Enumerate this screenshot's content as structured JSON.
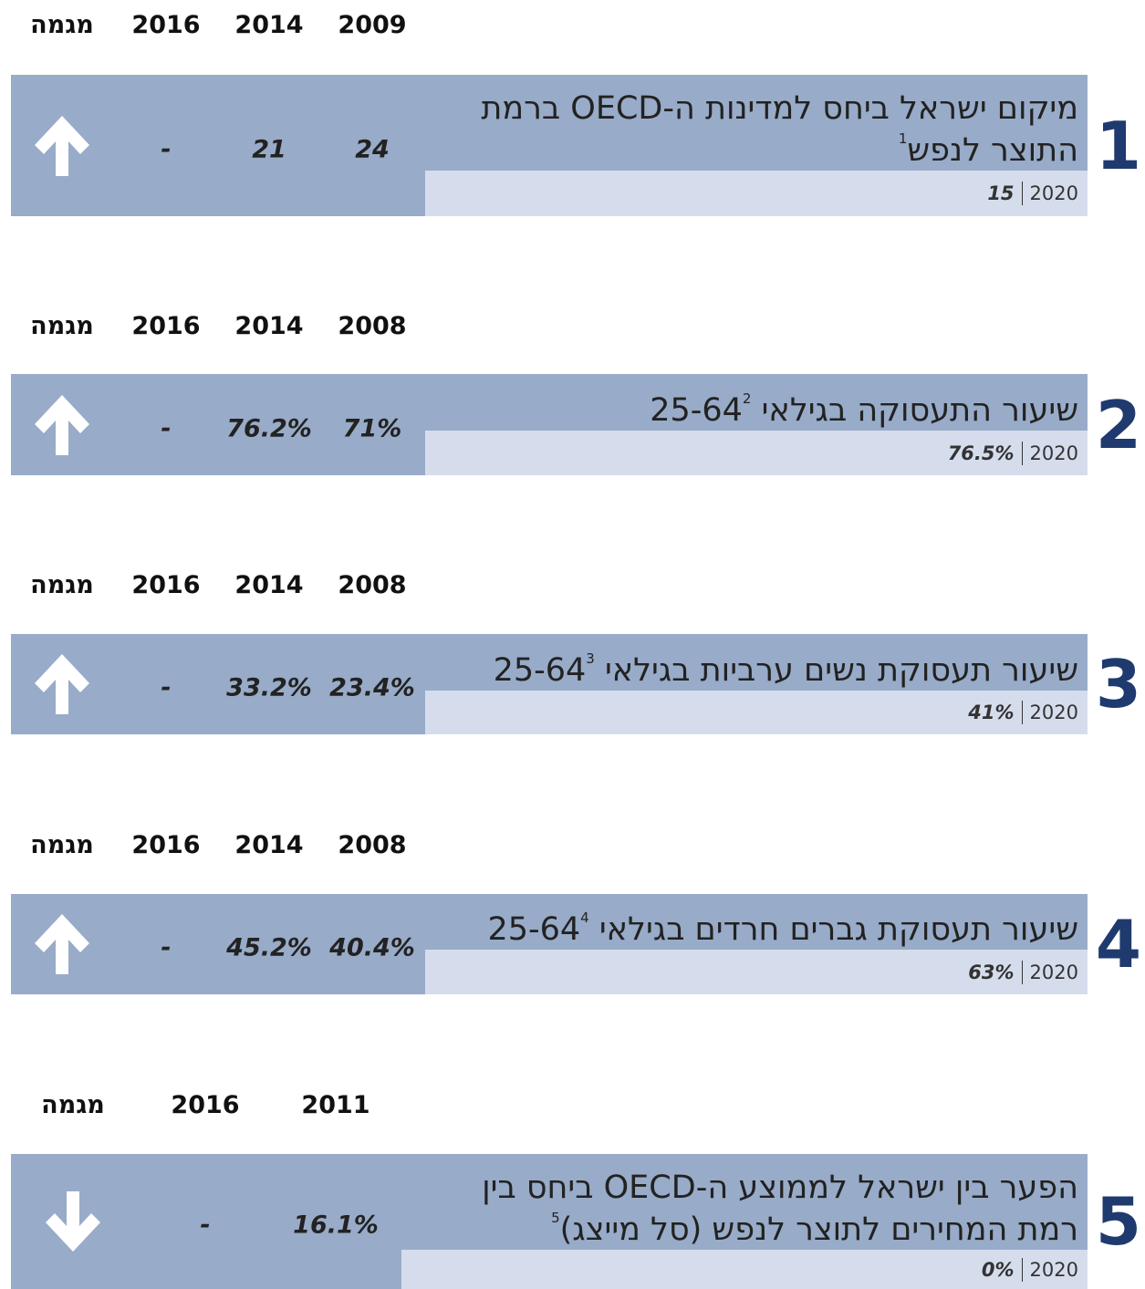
{
  "items": [
    {
      "number": "1",
      "headers": [
        "מגמה",
        "2016",
        "2014",
        "2009"
      ],
      "values": [
        "-",
        "21",
        "24"
      ],
      "title_lines": [
        "מיקום ישראל ביחס למדינות ה-OECD ברמת",
        "התוצר לנפש"
      ],
      "footnote": "1",
      "year": "2020",
      "current": "15"
    },
    {
      "number": "2",
      "headers": [
        "מגמה",
        "2016",
        "2014",
        "2008"
      ],
      "values": [
        "-",
        "76.2%",
        "71%"
      ],
      "title_lines": [
        "שיעור התעסוקה בגילאי 25-64"
      ],
      "footnote": "2",
      "year": "2020",
      "current": "76.5%"
    },
    {
      "number": "3",
      "headers": [
        "מגמה",
        "2016",
        "2014",
        "2008"
      ],
      "values": [
        "-",
        "33.2%",
        "23.4%"
      ],
      "title_lines": [
        "שיעור תעסוקת נשים ערביות בגילאי 25-64"
      ],
      "footnote": "3",
      "year": "2020",
      "current": "41%"
    },
    {
      "number": "4",
      "headers": [
        "מגמה",
        "2016",
        "2014",
        "2008"
      ],
      "values": [
        "-",
        "45.2%",
        "40.4%"
      ],
      "title_lines": [
        "שיעור תעסוקת גברים חרדים בגילאי 25-64"
      ],
      "footnote": "4",
      "year": "2020",
      "current": "63%"
    },
    {
      "number": "5",
      "headers": [
        "מגמה",
        "2016",
        "2011"
      ],
      "values": [
        "-",
        "16.1%"
      ],
      "title_lines": [
        "הפער בין ישראל לממוצע ה-OECD ביחס בין",
        "רמת המחירים לתוצר לנפש (סל מייצג)"
      ],
      "footnote": "5",
      "year": "2020",
      "current": "0%"
    }
  ]
}
